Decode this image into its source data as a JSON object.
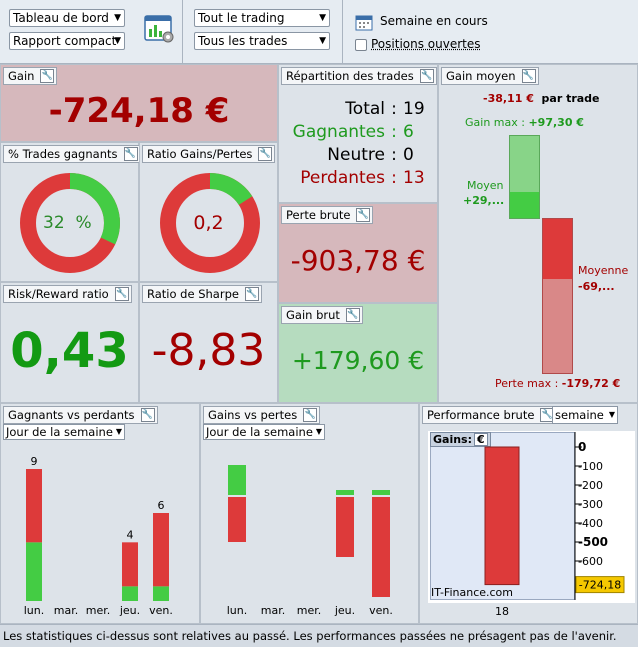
{
  "toolbar": {
    "view_select": "Tableau de bord",
    "mode_select": "Rapport compact",
    "trading_select": "Tout le trading",
    "trades_select": "Tous les trades",
    "period_label": "Semaine en cours",
    "open_positions_label": "Positions ouvertes",
    "open_positions_checked": false
  },
  "gain": {
    "title": "Gain",
    "value": "-724,18 €"
  },
  "pct_trades": {
    "title": "% Trades gagnants",
    "value": "32",
    "unit": "%",
    "fraction": 0.32
  },
  "ratio_gp": {
    "title": "Ratio Gains/Pertes",
    "value": "0,2",
    "fraction": 0.16
  },
  "repartition": {
    "title": "Répartition des trades",
    "rows": [
      {
        "label": "Total",
        "sep": ":",
        "value": "19"
      },
      {
        "label": "Gagnantes",
        "sep": ":",
        "value": "6"
      },
      {
        "label": "Neutre",
        "sep": ":",
        "value": "0"
      },
      {
        "label": "Perdantes",
        "sep": ":",
        "value": "13"
      }
    ]
  },
  "perte_brute": {
    "title": "Perte brute",
    "value": "-903,78 €"
  },
  "gain_brut": {
    "title": "Gain brut",
    "value": "+179,60 €"
  },
  "gain_moyen": {
    "title": "Gain moyen",
    "per_trade_value": "-38,11 €",
    "per_trade_label": "par trade",
    "gain_max_label": "Gain max :",
    "gain_max_value": "+97,30 €",
    "moyen_label": "Moyen",
    "moyen_value": "+29,...",
    "moyenne_label": "Moyenne",
    "moyenne_value": "-69,...",
    "perte_max_label": "Perte max :",
    "perte_max_value": "-179,72 €"
  },
  "rr": {
    "title": "Risk/Reward ratio",
    "value": "0,43"
  },
  "sharpe": {
    "title": "Ratio de Sharpe",
    "value": "-8,83"
  },
  "gvp": {
    "title": "Gagnants vs perdants",
    "select": "Jour de la semaine",
    "chart_data": {
      "type": "bar",
      "categories": [
        "lun.",
        "mar.",
        "mer.",
        "jeu.",
        "ven."
      ],
      "series": [
        {
          "values": [
            4,
            0,
            0,
            1,
            1
          ],
          "color": "#44cc44"
        },
        {
          "values": [
            5,
            0,
            0,
            3,
            5
          ],
          "color": "#dd3a3a"
        }
      ],
      "totals": [
        "9",
        "",
        "",
        "4",
        "6"
      ],
      "ylim": [
        0,
        9
      ]
    }
  },
  "gvl": {
    "title": "Gains vs pertes",
    "select": "Jour de la semaine",
    "chart_data": {
      "type": "bar",
      "categories": [
        "lun.",
        "mar.",
        "mer.",
        "jeu.",
        "ven."
      ],
      "series": [
        {
          "values": [
            60,
            0,
            0,
            10,
            10
          ],
          "color": "#44cc44"
        },
        {
          "values": [
            -90,
            0,
            0,
            -120,
            -200
          ],
          "color": "#dd3a3a"
        }
      ]
    }
  },
  "perf": {
    "title": "Performance brute",
    "select": "semaine",
    "gains_label": "Gains:",
    "currency_btn": "€",
    "watermark": "IT-Finance.com",
    "chart_data": {
      "type": "bar",
      "categories": [
        "18"
      ],
      "values": [
        -724.18
      ],
      "ylim": [
        -724.18,
        0
      ],
      "yticks": [
        "0",
        "-100",
        "-200",
        "-300",
        "-400",
        "-500",
        "-600"
      ],
      "current_label": "-724,18"
    }
  },
  "footer": "Les statistiques ci-dessus sont relatives au passé. Les performances passées ne présagent pas de l'avenir."
}
